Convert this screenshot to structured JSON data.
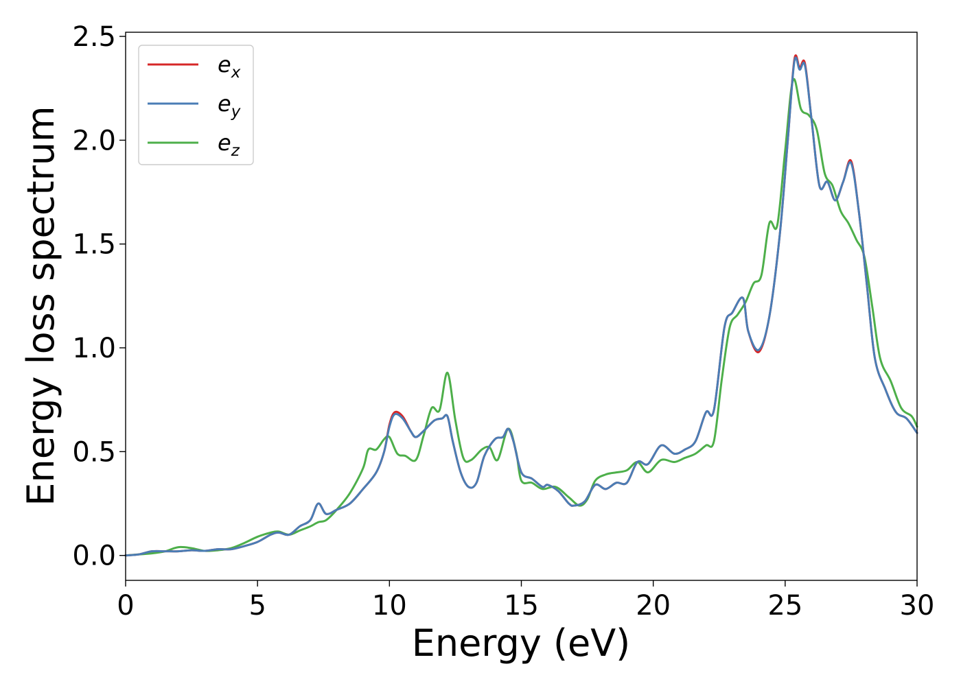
{
  "chart_data": {
    "type": "line",
    "title": "",
    "xlabel": "Energy (eV)",
    "ylabel": "Energy loss spectrum",
    "xlim": [
      0,
      30
    ],
    "ylim": [
      -0.12,
      2.52
    ],
    "xticks": [
      0,
      5,
      10,
      15,
      20,
      25,
      30
    ],
    "xtick_labels": [
      "0",
      "5",
      "10",
      "15",
      "20",
      "25",
      "30"
    ],
    "yticks": [
      0.0,
      0.5,
      1.0,
      1.5,
      2.0,
      2.5
    ],
    "ytick_labels": [
      "0.0",
      "0.5",
      "1.0",
      "1.5",
      "2.0",
      "2.5"
    ],
    "grid": false,
    "legend_position": "top-left",
    "series": [
      {
        "name": "e_x",
        "base": "e",
        "sub": "x",
        "color": "#d62728",
        "points": [
          [
            0,
            0
          ],
          [
            0.5,
            0.005
          ],
          [
            1,
            0.02
          ],
          [
            1.5,
            0.02
          ],
          [
            2,
            0.02
          ],
          [
            2.5,
            0.025
          ],
          [
            3,
            0.022
          ],
          [
            3.5,
            0.03
          ],
          [
            4,
            0.03
          ],
          [
            4.5,
            0.045
          ],
          [
            5,
            0.065
          ],
          [
            5.5,
            0.1
          ],
          [
            5.8,
            0.11
          ],
          [
            6.2,
            0.1
          ],
          [
            6.6,
            0.14
          ],
          [
            7,
            0.17
          ],
          [
            7.3,
            0.25
          ],
          [
            7.6,
            0.2
          ],
          [
            8,
            0.22
          ],
          [
            8.5,
            0.25
          ],
          [
            9,
            0.32
          ],
          [
            9.5,
            0.4
          ],
          [
            9.8,
            0.5
          ],
          [
            10,
            0.63
          ],
          [
            10.2,
            0.69
          ],
          [
            10.5,
            0.67
          ],
          [
            10.8,
            0.6
          ],
          [
            11,
            0.57
          ],
          [
            11.3,
            0.6
          ],
          [
            11.7,
            0.65
          ],
          [
            12,
            0.66
          ],
          [
            12.2,
            0.67
          ],
          [
            12.4,
            0.55
          ],
          [
            12.7,
            0.4
          ],
          [
            13,
            0.33
          ],
          [
            13.3,
            0.35
          ],
          [
            13.6,
            0.48
          ],
          [
            14,
            0.56
          ],
          [
            14.3,
            0.57
          ],
          [
            14.5,
            0.61
          ],
          [
            14.7,
            0.55
          ],
          [
            15,
            0.4
          ],
          [
            15.4,
            0.37
          ],
          [
            15.8,
            0.33
          ],
          [
            16,
            0.34
          ],
          [
            16.4,
            0.31
          ],
          [
            16.8,
            0.25
          ],
          [
            17,
            0.24
          ],
          [
            17.4,
            0.26
          ],
          [
            17.8,
            0.34
          ],
          [
            18.2,
            0.32
          ],
          [
            18.6,
            0.35
          ],
          [
            19,
            0.35
          ],
          [
            19.4,
            0.45
          ],
          [
            19.8,
            0.44
          ],
          [
            20.3,
            0.53
          ],
          [
            20.8,
            0.49
          ],
          [
            21.2,
            0.51
          ],
          [
            21.6,
            0.55
          ],
          [
            22,
            0.69
          ],
          [
            22.3,
            0.7
          ],
          [
            22.7,
            1.1
          ],
          [
            23,
            1.17
          ],
          [
            23.4,
            1.24
          ],
          [
            23.6,
            1.08
          ],
          [
            24,
            0.98
          ],
          [
            24.4,
            1.15
          ],
          [
            24.8,
            1.55
          ],
          [
            25.1,
            2.0
          ],
          [
            25.35,
            2.39
          ],
          [
            25.55,
            2.35
          ],
          [
            25.75,
            2.37
          ],
          [
            26,
            2.1
          ],
          [
            26.3,
            1.78
          ],
          [
            26.6,
            1.8
          ],
          [
            26.9,
            1.71
          ],
          [
            27.2,
            1.8
          ],
          [
            27.5,
            1.9
          ],
          [
            27.8,
            1.65
          ],
          [
            28.1,
            1.3
          ],
          [
            28.4,
            0.95
          ],
          [
            28.8,
            0.8
          ],
          [
            29.2,
            0.69
          ],
          [
            29.6,
            0.66
          ],
          [
            30,
            0.59
          ]
        ]
      },
      {
        "name": "e_y",
        "base": "e",
        "sub": "y",
        "color": "#4a7db5",
        "points": [
          [
            0,
            0
          ],
          [
            0.5,
            0.005
          ],
          [
            1,
            0.02
          ],
          [
            1.5,
            0.02
          ],
          [
            2,
            0.02
          ],
          [
            2.5,
            0.025
          ],
          [
            3,
            0.022
          ],
          [
            3.5,
            0.03
          ],
          [
            4,
            0.03
          ],
          [
            4.5,
            0.045
          ],
          [
            5,
            0.065
          ],
          [
            5.5,
            0.1
          ],
          [
            5.8,
            0.11
          ],
          [
            6.2,
            0.1
          ],
          [
            6.6,
            0.14
          ],
          [
            7,
            0.17
          ],
          [
            7.3,
            0.25
          ],
          [
            7.6,
            0.2
          ],
          [
            8,
            0.22
          ],
          [
            8.5,
            0.25
          ],
          [
            9,
            0.32
          ],
          [
            9.5,
            0.4
          ],
          [
            9.8,
            0.5
          ],
          [
            10,
            0.62
          ],
          [
            10.2,
            0.68
          ],
          [
            10.5,
            0.66
          ],
          [
            10.8,
            0.6
          ],
          [
            11,
            0.57
          ],
          [
            11.3,
            0.6
          ],
          [
            11.7,
            0.65
          ],
          [
            12,
            0.66
          ],
          [
            12.2,
            0.67
          ],
          [
            12.4,
            0.55
          ],
          [
            12.7,
            0.4
          ],
          [
            13,
            0.33
          ],
          [
            13.3,
            0.35
          ],
          [
            13.6,
            0.48
          ],
          [
            14,
            0.56
          ],
          [
            14.3,
            0.57
          ],
          [
            14.5,
            0.61
          ],
          [
            14.7,
            0.55
          ],
          [
            15,
            0.4
          ],
          [
            15.4,
            0.37
          ],
          [
            15.8,
            0.33
          ],
          [
            16,
            0.34
          ],
          [
            16.4,
            0.31
          ],
          [
            16.8,
            0.25
          ],
          [
            17,
            0.24
          ],
          [
            17.4,
            0.26
          ],
          [
            17.8,
            0.34
          ],
          [
            18.2,
            0.32
          ],
          [
            18.6,
            0.35
          ],
          [
            19,
            0.35
          ],
          [
            19.4,
            0.45
          ],
          [
            19.8,
            0.44
          ],
          [
            20.3,
            0.53
          ],
          [
            20.8,
            0.49
          ],
          [
            21.2,
            0.51
          ],
          [
            21.6,
            0.55
          ],
          [
            22,
            0.69
          ],
          [
            22.3,
            0.7
          ],
          [
            22.7,
            1.1
          ],
          [
            23,
            1.17
          ],
          [
            23.4,
            1.24
          ],
          [
            23.6,
            1.08
          ],
          [
            24,
            0.99
          ],
          [
            24.4,
            1.15
          ],
          [
            24.8,
            1.55
          ],
          [
            25.1,
            2.0
          ],
          [
            25.35,
            2.38
          ],
          [
            25.55,
            2.34
          ],
          [
            25.75,
            2.36
          ],
          [
            26,
            2.1
          ],
          [
            26.3,
            1.78
          ],
          [
            26.6,
            1.8
          ],
          [
            26.9,
            1.71
          ],
          [
            27.2,
            1.8
          ],
          [
            27.5,
            1.89
          ],
          [
            27.8,
            1.65
          ],
          [
            28.1,
            1.3
          ],
          [
            28.4,
            0.95
          ],
          [
            28.8,
            0.8
          ],
          [
            29.2,
            0.69
          ],
          [
            29.6,
            0.66
          ],
          [
            30,
            0.59
          ]
        ]
      },
      {
        "name": "e_z",
        "base": "e",
        "sub": "z",
        "color": "#4daf4a",
        "points": [
          [
            0,
            0
          ],
          [
            0.5,
            0.005
          ],
          [
            1,
            0.01
          ],
          [
            1.5,
            0.02
          ],
          [
            2,
            0.04
          ],
          [
            2.5,
            0.035
          ],
          [
            3,
            0.022
          ],
          [
            3.5,
            0.025
          ],
          [
            4,
            0.035
          ],
          [
            4.5,
            0.06
          ],
          [
            5,
            0.09
          ],
          [
            5.5,
            0.11
          ],
          [
            5.8,
            0.115
          ],
          [
            6.2,
            0.1
          ],
          [
            6.6,
            0.12
          ],
          [
            7,
            0.14
          ],
          [
            7.3,
            0.16
          ],
          [
            7.6,
            0.17
          ],
          [
            8,
            0.22
          ],
          [
            8.5,
            0.3
          ],
          [
            9,
            0.42
          ],
          [
            9.2,
            0.51
          ],
          [
            9.5,
            0.51
          ],
          [
            9.8,
            0.56
          ],
          [
            10,
            0.57
          ],
          [
            10.3,
            0.49
          ],
          [
            10.6,
            0.48
          ],
          [
            11,
            0.46
          ],
          [
            11.3,
            0.58
          ],
          [
            11.6,
            0.71
          ],
          [
            11.9,
            0.7
          ],
          [
            12.2,
            0.88
          ],
          [
            12.5,
            0.65
          ],
          [
            12.8,
            0.47
          ],
          [
            13.1,
            0.46
          ],
          [
            13.5,
            0.51
          ],
          [
            13.8,
            0.52
          ],
          [
            14.1,
            0.46
          ],
          [
            14.5,
            0.61
          ],
          [
            14.8,
            0.5
          ],
          [
            15,
            0.36
          ],
          [
            15.4,
            0.35
          ],
          [
            15.8,
            0.32
          ],
          [
            16.3,
            0.33
          ],
          [
            16.8,
            0.28
          ],
          [
            17.2,
            0.24
          ],
          [
            17.5,
            0.27
          ],
          [
            17.8,
            0.36
          ],
          [
            18.2,
            0.39
          ],
          [
            18.6,
            0.4
          ],
          [
            19,
            0.41
          ],
          [
            19.4,
            0.45
          ],
          [
            19.8,
            0.4
          ],
          [
            20.3,
            0.46
          ],
          [
            20.8,
            0.45
          ],
          [
            21.2,
            0.47
          ],
          [
            21.6,
            0.49
          ],
          [
            22,
            0.53
          ],
          [
            22.3,
            0.55
          ],
          [
            22.6,
            0.85
          ],
          [
            22.9,
            1.1
          ],
          [
            23.2,
            1.16
          ],
          [
            23.5,
            1.22
          ],
          [
            23.8,
            1.31
          ],
          [
            24.1,
            1.35
          ],
          [
            24.4,
            1.6
          ],
          [
            24.7,
            1.59
          ],
          [
            25,
            1.95
          ],
          [
            25.3,
            2.29
          ],
          [
            25.6,
            2.15
          ],
          [
            25.9,
            2.12
          ],
          [
            26.2,
            2.05
          ],
          [
            26.5,
            1.84
          ],
          [
            26.8,
            1.78
          ],
          [
            27.1,
            1.66
          ],
          [
            27.4,
            1.6
          ],
          [
            27.7,
            1.52
          ],
          [
            28,
            1.44
          ],
          [
            28.3,
            1.2
          ],
          [
            28.6,
            0.95
          ],
          [
            29,
            0.84
          ],
          [
            29.4,
            0.71
          ],
          [
            29.8,
            0.67
          ],
          [
            30,
            0.62
          ]
        ]
      }
    ]
  }
}
